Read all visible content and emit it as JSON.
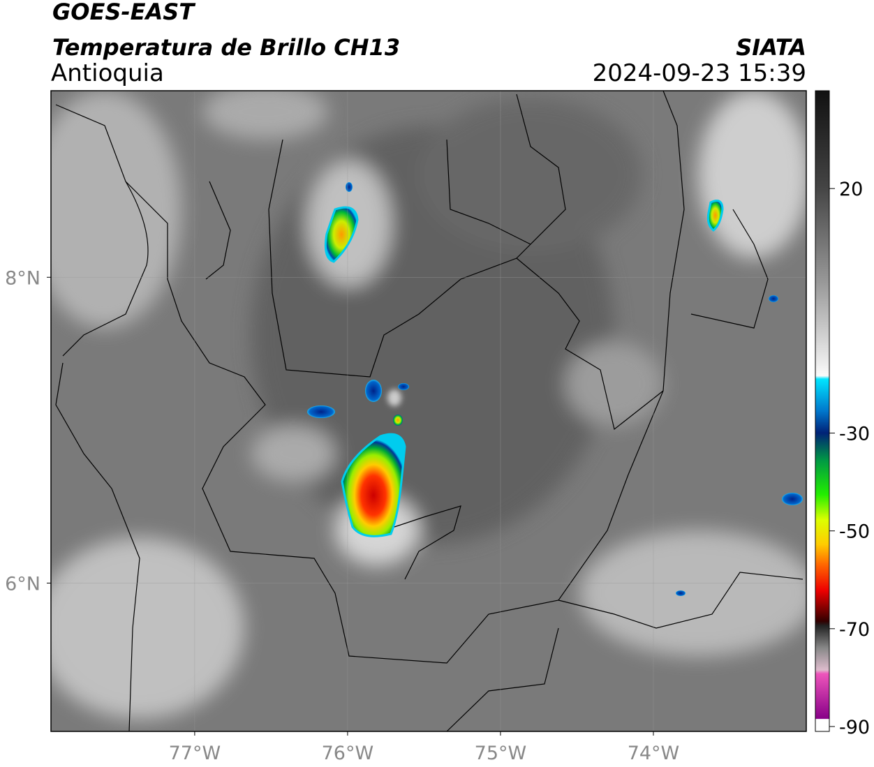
{
  "header": {
    "title": "GOES-EAST",
    "subtitle": "Temperatura de Brillo CH13",
    "region": "Antioquia",
    "source": "SIATA",
    "datetime": "2024-09-23 15:39"
  },
  "map": {
    "xlim": [
      -77.94,
      -73.0
    ],
    "ylim": [
      5.03,
      9.22
    ],
    "xticks": [
      {
        "value": -77,
        "label": "77°W"
      },
      {
        "value": -76,
        "label": "76°W"
      },
      {
        "value": -75,
        "label": "75°W"
      },
      {
        "value": -74,
        "label": "74°W"
      }
    ],
    "yticks": [
      {
        "value": 8,
        "label": "8°N"
      },
      {
        "value": 6,
        "label": "6°N"
      }
    ]
  },
  "colorbar": {
    "ylim": [
      -91,
      40
    ],
    "yticks": [
      20,
      -30,
      -50,
      -70,
      -90
    ]
  }
}
